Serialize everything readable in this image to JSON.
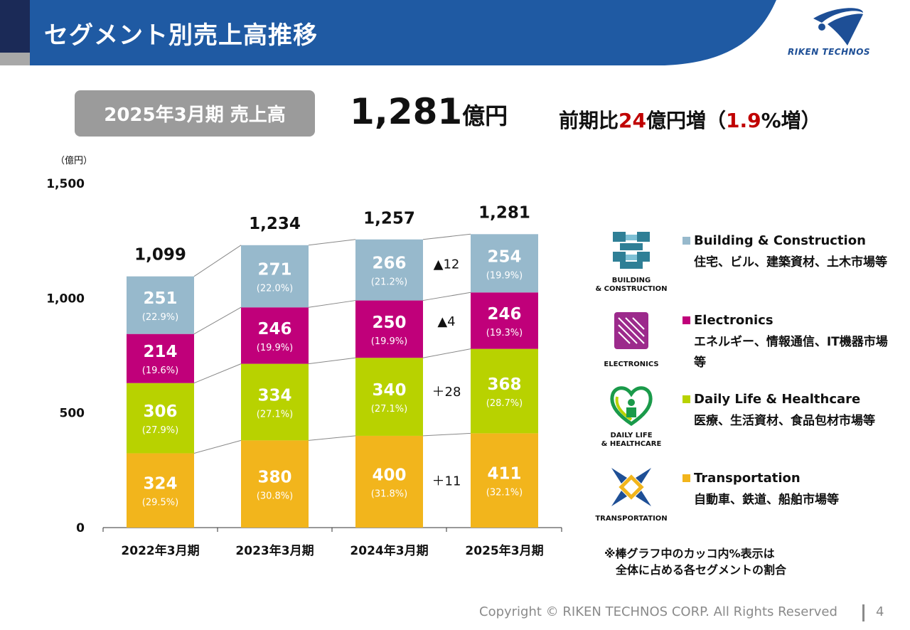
{
  "header": {
    "title": "セグメント別売上高推移",
    "logo_text": "RIKEN TECHNOS",
    "band_color": "#1f5aa3"
  },
  "summary": {
    "period_label": "2025年3月期 売上高",
    "amount": "1,281",
    "amount_unit": "億円",
    "compare_prefix": "前期比",
    "compare_value": "24",
    "compare_mid": "億円増（",
    "compare_pct": "1.9",
    "compare_suffix": "%増）"
  },
  "legend": [
    {
      "icon": "building-construction-icon",
      "caption": "BUILDING\n& CONSTRUCTION",
      "name": "Building & Construction",
      "desc": "住宅、ビル、建築資材、土木市場等"
    },
    {
      "icon": "electronics-icon",
      "caption": "ELECTRONICS",
      "name": "Electronics",
      "desc": "エネルギー、情報通信、IT機器市場等"
    },
    {
      "icon": "daily-life-healthcare-icon",
      "caption": "DAILY LIFE\n& HEALTHCARE",
      "name": "Daily Life & Healthcare",
      "desc": "医療、生活資材、食品包材市場等"
    },
    {
      "icon": "transportation-icon",
      "caption": "TRANSPORTATION",
      "name": "Transportation",
      "desc": "自動車、鉄道、船舶市場等"
    }
  ],
  "note": "※棒グラフ中のカッコ内%表示は\n　全体に占める各セグメントの割合",
  "footer": {
    "copyright": "Copyright © RIKEN TECHNOS CORP. All Rights Reserved",
    "page": "4"
  },
  "chart_data": {
    "type": "bar",
    "stacked": true,
    "unit_label": "（億円）",
    "ylim": [
      0,
      1500
    ],
    "yticks": [
      0,
      500,
      1000,
      1500
    ],
    "ytick_labels": [
      "0",
      "500",
      "1,000",
      "1,500"
    ],
    "categories": [
      "2022年3月期",
      "2023年3月期",
      "2024年3月期",
      "2025年3月期"
    ],
    "totals": [
      1099,
      1234,
      1257,
      1281
    ],
    "total_labels": [
      "1,099",
      "1,234",
      "1,257",
      "1,281"
    ],
    "series": [
      {
        "name": "Transportation",
        "color": "#f2b51c",
        "values": [
          324,
          380,
          400,
          411
        ],
        "pct_labels": [
          "(29.5%)",
          "(30.8%)",
          "(31.8%)",
          "(32.1%)"
        ]
      },
      {
        "name": "Daily Life & Healthcare",
        "color": "#b8d200",
        "values": [
          306,
          334,
          340,
          368
        ],
        "pct_labels": [
          "(27.9%)",
          "(27.1%)",
          "(27.1%)",
          "(28.7%)"
        ]
      },
      {
        "name": "Electronics",
        "color": "#c0007a",
        "values": [
          214,
          246,
          250,
          246
        ],
        "pct_labels": [
          "(19.6%)",
          "(19.9%)",
          "(19.9%)",
          "(19.3%)"
        ]
      },
      {
        "name": "Building & Construction",
        "color": "#97b9cc",
        "values": [
          251,
          271,
          266,
          254
        ],
        "pct_labels": [
          "(22.9%)",
          "(22.0%)",
          "(21.2%)",
          "(19.9%)"
        ]
      }
    ],
    "yoy_changes": [
      "＋11",
      "＋28",
      "▲4",
      "▲12"
    ]
  }
}
